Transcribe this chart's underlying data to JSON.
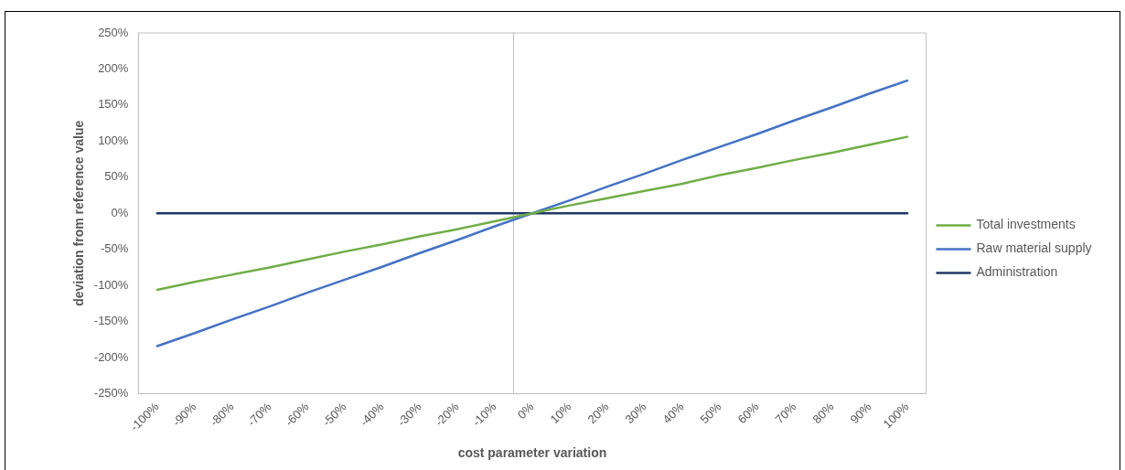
{
  "chart_data": {
    "type": "line",
    "xlabel": "cost parameter variation",
    "ylabel": "deviation from reference value",
    "categories": [
      "-100%",
      "-90%",
      "-80%",
      "-70%",
      "-60%",
      "-50%",
      "-40%",
      "-30%",
      "-20%",
      "-10%",
      "0%",
      "10%",
      "20%",
      "30%",
      "40%",
      "50%",
      "60%",
      "70%",
      "80%",
      "90%",
      "100%"
    ],
    "series": [
      {
        "name": "Total investments",
        "color": "#70ad47",
        "values": [
          -106,
          -95,
          -85,
          -75,
          -64,
          -53,
          -43,
          -32,
          -22,
          -11,
          0,
          11,
          21,
          31,
          41,
          53,
          63,
          74,
          84,
          95,
          106
        ]
      },
      {
        "name": "Raw material supply",
        "color": "#4472c4",
        "values": [
          -184,
          -166,
          -147,
          -129,
          -110,
          -92,
          -74,
          -55,
          -37,
          -18,
          0,
          18,
          37,
          55,
          74,
          92,
          110,
          129,
          147,
          166,
          184
        ]
      },
      {
        "name": "Administration",
        "color": "#203864",
        "values": [
          0,
          0,
          0,
          0,
          0,
          0,
          0,
          0,
          0,
          0,
          0,
          0,
          0,
          0,
          0,
          0,
          0,
          0,
          0,
          0,
          0
        ]
      }
    ],
    "ylim": [
      -250,
      250
    ],
    "yticks": [
      {
        "value": -250,
        "label": "-250%"
      },
      {
        "value": -200,
        "label": "-200%"
      },
      {
        "value": -150,
        "label": "-150%"
      },
      {
        "value": -100,
        "label": "-100%"
      },
      {
        "value": -50,
        "label": "-50%"
      },
      {
        "value": 0,
        "label": "0%"
      },
      {
        "value": 50,
        "label": "50%"
      },
      {
        "value": 100,
        "label": "100%"
      },
      {
        "value": 150,
        "label": "150%"
      },
      {
        "value": 200,
        "label": "200%"
      },
      {
        "value": 250,
        "label": "250%"
      }
    ],
    "grid": false,
    "legend": "right",
    "marker": "none",
    "line_style": "solid"
  }
}
